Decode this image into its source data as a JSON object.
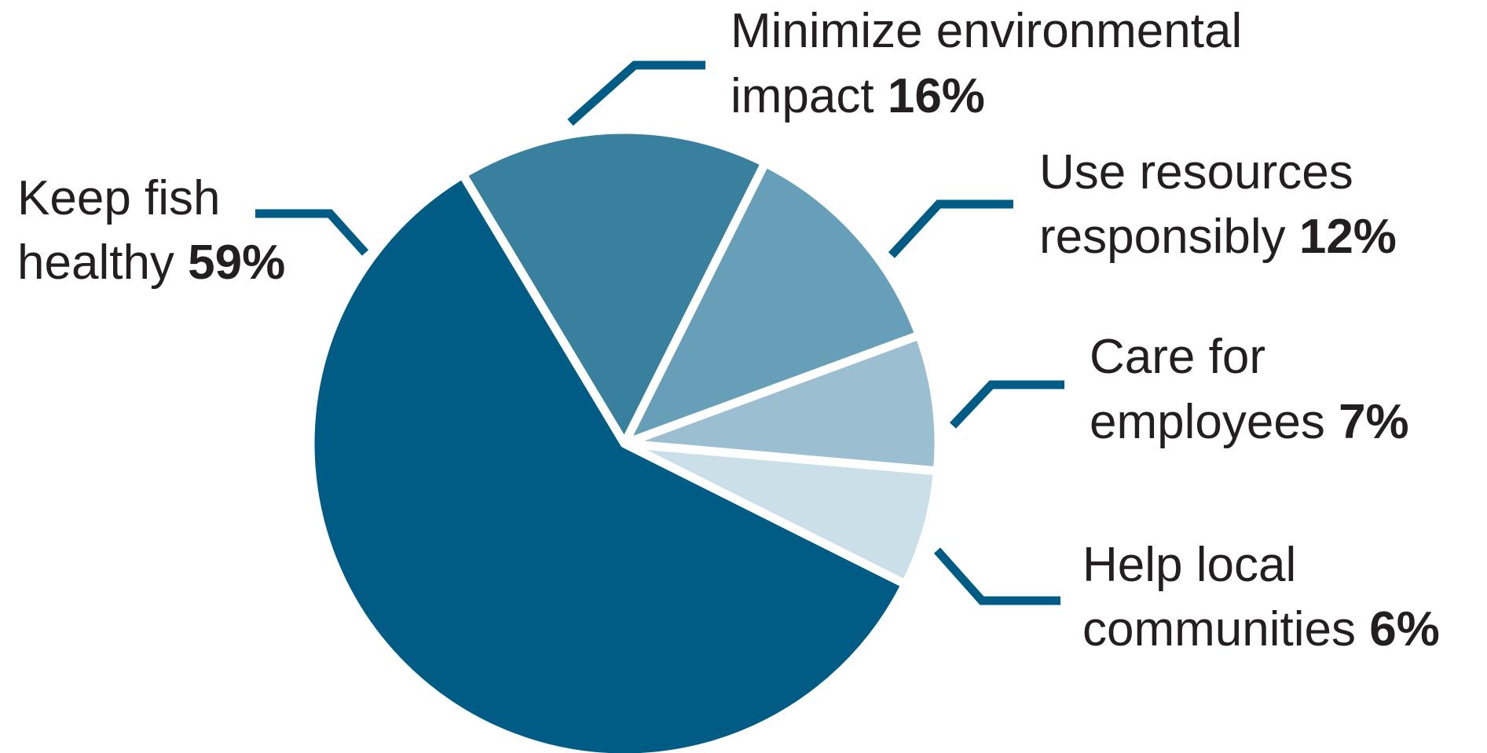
{
  "chart_data": {
    "type": "pie",
    "title": "",
    "slices": [
      {
        "line1": "Keep fish",
        "line2": "healthy",
        "percent_label": "59%",
        "value": 59,
        "color": "#005b85"
      },
      {
        "line1": "Minimize environmental",
        "line2": "impact",
        "percent_label": "16%",
        "value": 16,
        "color": "#39809e"
      },
      {
        "line1": "Use resources",
        "line2": "responsibly",
        "percent_label": "12%",
        "value": 12,
        "color": "#689fb8"
      },
      {
        "line1": "Care for",
        "line2": "employees",
        "percent_label": "7%",
        "value": 7,
        "color": "#9bbfd1"
      },
      {
        "line1": "Help local",
        "line2": "communities",
        "percent_label": "6%",
        "value": 6,
        "color": "#cbdfe8"
      }
    ],
    "leader_color": "#005b85",
    "separator_color": "#ffffff"
  }
}
